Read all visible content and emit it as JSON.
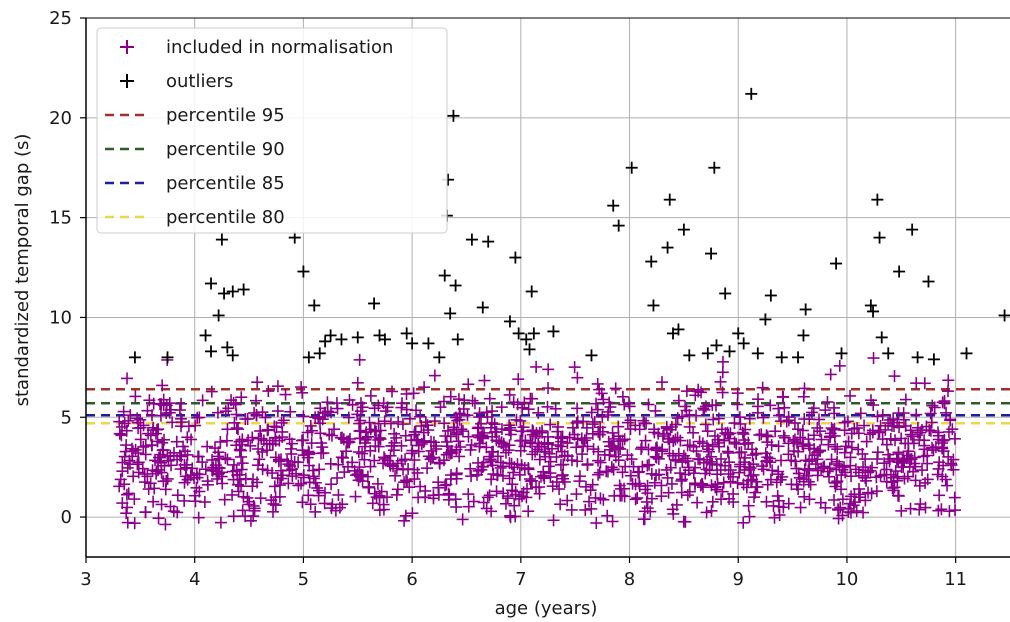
{
  "chart_data": {
    "type": "scatter",
    "xlabel": "age (years)",
    "ylabel": "standardized temporal gap (s)",
    "xlim": [
      3,
      11.5
    ],
    "ylim": [
      -2,
      25
    ],
    "xticks": [
      "3",
      "4",
      "5",
      "6",
      "7",
      "8",
      "9",
      "10",
      "11"
    ],
    "yticks": [
      "0",
      "5",
      "10",
      "15",
      "20",
      "25"
    ],
    "grid": true,
    "legend_position": "top-left",
    "series": [
      {
        "name": "included in normalisation",
        "kind": "points",
        "marker": "+",
        "color": "#8b008b",
        "x_range": [
          3.3,
          11.0
        ],
        "y_range": [
          -0.4,
          8.0
        ],
        "approx_count": 1500
      },
      {
        "name": "outliers",
        "kind": "points",
        "marker": "+",
        "color": "#000000",
        "points": [
          [
            3.45,
            8.0
          ],
          [
            3.75,
            8.0
          ],
          [
            4.1,
            9.1
          ],
          [
            4.15,
            8.3
          ],
          [
            4.15,
            11.7
          ],
          [
            4.22,
            10.1
          ],
          [
            4.25,
            13.9
          ],
          [
            4.27,
            11.2
          ],
          [
            4.3,
            8.5
          ],
          [
            4.35,
            11.3
          ],
          [
            4.35,
            8.1
          ],
          [
            4.45,
            11.4
          ],
          [
            4.92,
            14.0
          ],
          [
            5.0,
            12.3
          ],
          [
            5.05,
            8.0
          ],
          [
            5.1,
            10.6
          ],
          [
            5.15,
            8.2
          ],
          [
            5.2,
            8.8
          ],
          [
            5.25,
            9.1
          ],
          [
            5.35,
            8.9
          ],
          [
            5.5,
            9.0
          ],
          [
            5.65,
            10.7
          ],
          [
            5.7,
            9.1
          ],
          [
            5.75,
            8.9
          ],
          [
            5.95,
            9.2
          ],
          [
            6.0,
            8.7
          ],
          [
            6.15,
            8.7
          ],
          [
            6.25,
            8.0
          ],
          [
            6.3,
            12.1
          ],
          [
            6.32,
            15.1
          ],
          [
            6.33,
            16.9
          ],
          [
            6.35,
            10.2
          ],
          [
            6.38,
            20.1
          ],
          [
            6.4,
            11.6
          ],
          [
            6.42,
            8.9
          ],
          [
            6.55,
            13.9
          ],
          [
            6.65,
            10.5
          ],
          [
            6.7,
            13.8
          ],
          [
            6.9,
            9.8
          ],
          [
            6.95,
            13.0
          ],
          [
            6.98,
            9.2
          ],
          [
            7.05,
            8.9
          ],
          [
            7.08,
            8.4
          ],
          [
            7.1,
            11.3
          ],
          [
            7.12,
            9.2
          ],
          [
            7.3,
            9.3
          ],
          [
            7.65,
            8.1
          ],
          [
            7.85,
            15.6
          ],
          [
            7.9,
            14.6
          ],
          [
            8.02,
            17.5
          ],
          [
            8.2,
            12.8
          ],
          [
            8.22,
            10.6
          ],
          [
            8.35,
            13.5
          ],
          [
            8.37,
            15.9
          ],
          [
            8.4,
            9.2
          ],
          [
            8.45,
            9.4
          ],
          [
            8.5,
            14.4
          ],
          [
            8.55,
            8.1
          ],
          [
            8.72,
            8.2
          ],
          [
            8.75,
            13.2
          ],
          [
            8.78,
            17.5
          ],
          [
            8.8,
            8.6
          ],
          [
            8.88,
            11.2
          ],
          [
            8.92,
            8.3
          ],
          [
            9.0,
            9.2
          ],
          [
            9.05,
            8.7
          ],
          [
            9.12,
            21.2
          ],
          [
            9.18,
            8.2
          ],
          [
            9.25,
            9.9
          ],
          [
            9.3,
            11.1
          ],
          [
            9.4,
            8.0
          ],
          [
            9.55,
            8.0
          ],
          [
            9.6,
            9.1
          ],
          [
            9.62,
            10.4
          ],
          [
            9.9,
            12.7
          ],
          [
            9.95,
            8.2
          ],
          [
            10.22,
            10.6
          ],
          [
            10.24,
            10.3
          ],
          [
            10.28,
            15.9
          ],
          [
            10.3,
            14.0
          ],
          [
            10.32,
            9.0
          ],
          [
            10.38,
            8.2
          ],
          [
            10.48,
            12.3
          ],
          [
            10.6,
            14.4
          ],
          [
            10.65,
            8.0
          ],
          [
            10.75,
            11.8
          ],
          [
            10.8,
            7.9
          ],
          [
            11.1,
            8.2
          ],
          [
            11.45,
            10.1
          ]
        ]
      },
      {
        "name": "percentile 95",
        "kind": "hline",
        "y": 6.4,
        "color": "#a0302a"
      },
      {
        "name": "percentile 90",
        "kind": "hline",
        "y": 5.7,
        "color": "#2e5b2e"
      },
      {
        "name": "percentile 85",
        "kind": "hline",
        "y": 5.1,
        "color": "#1f1f9a"
      },
      {
        "name": "percentile 80",
        "kind": "hline",
        "y": 4.7,
        "color": "#e8d84a"
      }
    ]
  },
  "style": {
    "grid_color": "#b0b0b0",
    "axis_color": "#000000",
    "legend_bg": "#ffffff",
    "legend_border": "#cccccc"
  }
}
